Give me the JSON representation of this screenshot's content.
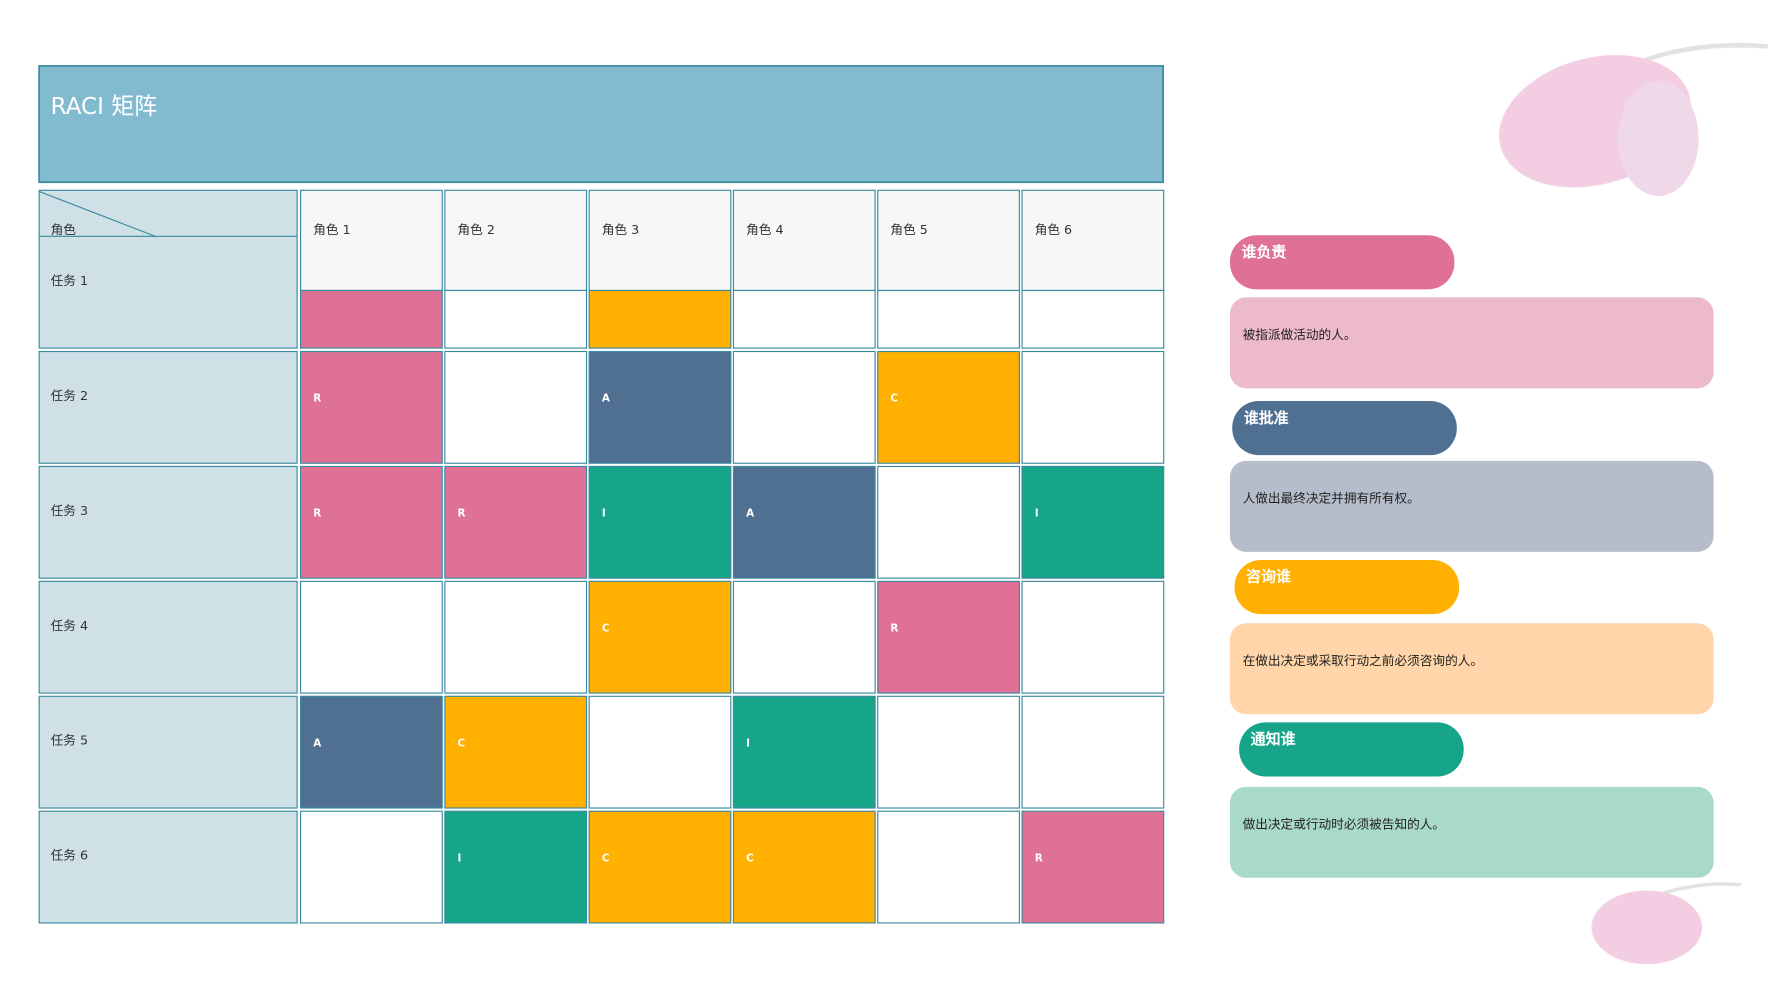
{
  "title": "RACI 矩阵",
  "table": {
    "corner": "角色",
    "columns": [
      "角色 1",
      "角色 2",
      "角色 3",
      "角色 4",
      "角色 5",
      "角色 6"
    ],
    "rows": [
      {
        "task": "任务 1",
        "cells": [
          {
            "color": "#df7096"
          },
          null,
          {
            "color": "#ffb000"
          },
          null,
          null,
          null
        ]
      },
      {
        "task": "任务 2",
        "cells": [
          {
            "label": "R",
            "color": "#df7096"
          },
          null,
          {
            "label": "A",
            "color": "#4f7091"
          },
          null,
          {
            "label": "C",
            "color": "#ffb000"
          },
          null
        ]
      },
      {
        "task": "任务 3",
        "cells": [
          {
            "label": "R",
            "color": "#df7096"
          },
          {
            "label": "R",
            "color": "#df7096"
          },
          {
            "label": "I",
            "color": "#17a589"
          },
          {
            "label": "A",
            "color": "#4f7091"
          },
          null,
          {
            "label": "I",
            "color": "#17a589"
          }
        ]
      },
      {
        "task": "任务 4",
        "cells": [
          null,
          null,
          {
            "label": "C",
            "color": "#ffb000"
          },
          null,
          {
            "label": "R",
            "color": "#df7096"
          },
          null
        ]
      },
      {
        "task": "任务 5",
        "cells": [
          {
            "label": "A",
            "color": "#4f7091"
          },
          {
            "label": "C",
            "color": "#ffb000"
          },
          null,
          {
            "label": "I",
            "color": "#17a589"
          },
          null,
          null
        ]
      },
      {
        "task": "任务 6",
        "cells": [
          null,
          {
            "label": "I",
            "color": "#17a589"
          },
          {
            "label": "C",
            "color": "#ffb000"
          },
          {
            "label": "C",
            "color": "#ffb000"
          },
          null,
          {
            "label": "R",
            "color": "#df7096"
          }
        ]
      }
    ]
  },
  "legend": [
    {
      "title": "谁负责",
      "description": "被指派做活动的人。",
      "color": "#df7096",
      "box_color": "#ecbac8"
    },
    {
      "title": "谁批准",
      "description": "人做出最终决定并拥有所有权。",
      "color": "#4f7091",
      "box_color": "#b5bcca"
    },
    {
      "title": "咨询谁",
      "description": "在做出决定或采取行动之前必须咨询的人。",
      "color": "#ffb000",
      "box_color": "#ffd5a9"
    },
    {
      "title": "通知谁",
      "description": "做出决定或行动时必须被告知的人。",
      "color": "#17a589",
      "box_color": "#a9d9c9"
    }
  ]
}
